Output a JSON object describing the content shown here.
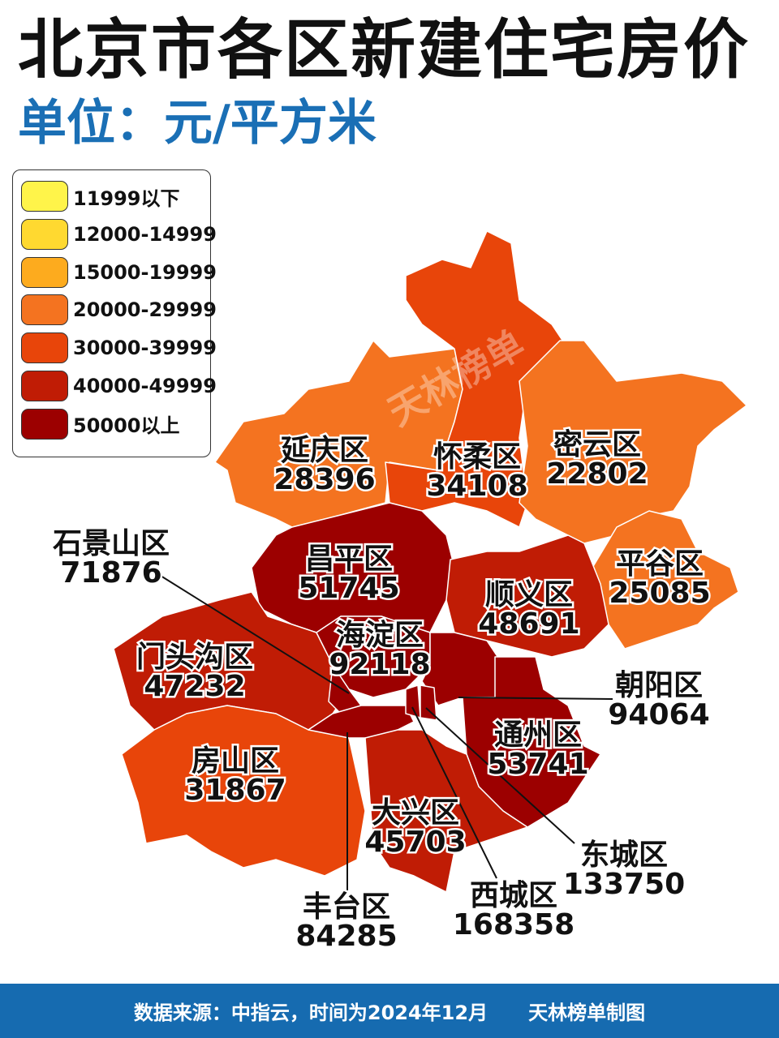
{
  "title": "北京市各区新建住宅房价",
  "subtitle": "单位：元/平方米",
  "watermark": "天林榜单",
  "legend": [
    {
      "label": "11999以下",
      "color": "#fff44a"
    },
    {
      "label": "12000-14999",
      "color": "#ffd930"
    },
    {
      "label": "15000-19999",
      "color": "#fdab1e"
    },
    {
      "label": "20000-29999",
      "color": "#f47320"
    },
    {
      "label": "30000-39999",
      "color": "#e8450a"
    },
    {
      "label": "40000-49999",
      "color": "#c01c05"
    },
    {
      "label": "50000以上",
      "color": "#9c0000"
    }
  ],
  "districts": {
    "yanqing": {
      "name": "延庆区",
      "value": "28396"
    },
    "huairou": {
      "name": "怀柔区",
      "value": "34108"
    },
    "miyun": {
      "name": "密云区",
      "value": "22802"
    },
    "pinggu": {
      "name": "平谷区",
      "value": "25085"
    },
    "changping": {
      "name": "昌平区",
      "value": "51745"
    },
    "shunyi": {
      "name": "顺义区",
      "value": "48691"
    },
    "haidian": {
      "name": "海淀区",
      "value": "92118"
    },
    "chaoyang": {
      "name": "朝阳区",
      "value": "94064"
    },
    "tongzhou": {
      "name": "通州区",
      "value": "53741"
    },
    "mentougou": {
      "name": "门头沟区",
      "value": "47232"
    },
    "shijingshan": {
      "name": "石景山区",
      "value": "71876"
    },
    "fangshan": {
      "name": "房山区",
      "value": "31867"
    },
    "fengtai": {
      "name": "丰台区",
      "value": "84285"
    },
    "daxing": {
      "name": "大兴区",
      "value": "45703"
    },
    "dongcheng": {
      "name": "东城区",
      "value": "133750"
    },
    "xicheng": {
      "name": "西城区",
      "value": "168358"
    }
  },
  "footer": {
    "source": "数据来源：中指云，时间为2024年12月",
    "credit": "天林榜单制图"
  }
}
